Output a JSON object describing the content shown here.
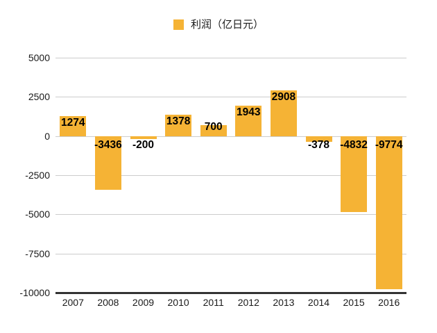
{
  "chart_data": {
    "type": "bar",
    "title": "",
    "xlabel": "",
    "ylabel": "",
    "categories": [
      "2007",
      "2008",
      "2009",
      "2010",
      "2011",
      "2012",
      "2013",
      "2014",
      "2015",
      "2016"
    ],
    "series": [
      {
        "name": "利润（亿日元）",
        "values": [
          1274,
          -3436,
          -200,
          1378,
          700,
          1943,
          2908,
          -378,
          -4832,
          -9774
        ]
      }
    ],
    "ylim": [
      -10000,
      5000
    ],
    "yticks": [
      5000,
      2500,
      0,
      -2500,
      -5000,
      -7500,
      -10000
    ],
    "grid": true,
    "legend_position": "top",
    "bar_color": "#F5B335",
    "grid_color": "#CCCCCC",
    "axis_line_color": "#333333",
    "tick_text_color": "#1A1A1A",
    "value_label_color": "#000000",
    "background_color": "#FFFFFF"
  }
}
